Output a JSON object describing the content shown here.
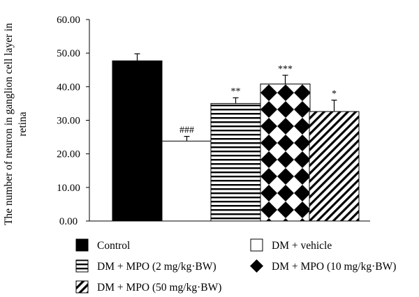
{
  "chart_data": {
    "type": "bar",
    "title": "",
    "ylabel": "The number of neuron in ganglion cell layer in retina",
    "ylabel_lines": [
      "The number of neuron in ganglion cell layer in",
      "retina"
    ],
    "xlabel": "",
    "ylim": [
      0,
      60
    ],
    "yticks": [
      "0.00",
      "10.00",
      "20.00",
      "30.00",
      "40.00",
      "50.00",
      "60.00"
    ],
    "grid": false,
    "legend_position": "bottom",
    "categories": [
      "Control",
      "DM + vehicle",
      "DM + MPO (2 mg/kg·BW)",
      "DM + MPO (10 mg/kg·BW)",
      "DM + MPO (50 mg/kg·BW)"
    ],
    "values": [
      47.7,
      23.8,
      35.0,
      40.8,
      32.6
    ],
    "errors": [
      2.1,
      1.4,
      1.7,
      2.6,
      3.4
    ],
    "annotations": [
      "",
      "###",
      "**",
      "***",
      "*"
    ],
    "fills": [
      "solid",
      "white",
      "horizontal-stripes",
      "checker-diamond",
      "diagonal-stripes"
    ]
  },
  "legend": [
    {
      "label": "Control",
      "fill": "solid"
    },
    {
      "label": "DM + vehicle",
      "fill": "white"
    },
    {
      "label": "DM + MPO (2 mg/kg·BW)",
      "fill": "horizontal-stripes"
    },
    {
      "label": "DM + MPO (10 mg/kg·BW)",
      "fill": "diamond"
    },
    {
      "label": "DM + MPO (50 mg/kg·BW)",
      "fill": "diagonal-stripes"
    }
  ],
  "colors": {
    "ink": "#000000",
    "background": "#ffffff"
  }
}
